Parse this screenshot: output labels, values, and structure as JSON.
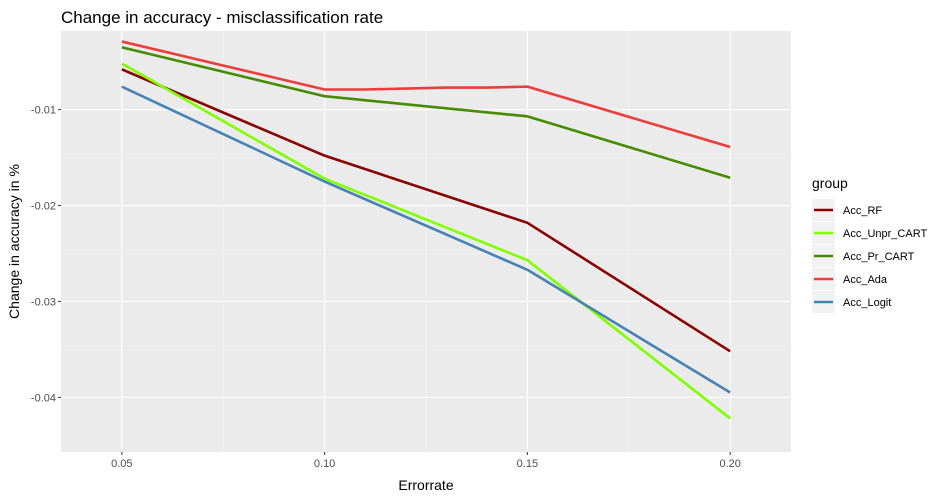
{
  "chart_data": {
    "type": "line",
    "title": "Change in accuracy - misclassification rate",
    "xlabel": "Errorrate",
    "ylabel": "Change in accuracy in %",
    "x": [
      0.05,
      0.1,
      0.15,
      0.2
    ],
    "x_tick_labels": [
      "0.05",
      "0.10",
      "0.15",
      "0.20"
    ],
    "y_ticks": [
      -0.01,
      -0.02,
      -0.03,
      -0.04
    ],
    "y_tick_labels": [
      "-0.01",
      "-0.02",
      "-0.03",
      "-0.04"
    ],
    "xlim": [
      0.035,
      0.215
    ],
    "ylim": [
      -0.0457,
      -0.0018
    ],
    "grid": true,
    "legend": {
      "title": "group",
      "position": "right"
    },
    "series": [
      {
        "name": "Acc_RF",
        "color": "#8b0000",
        "x": [
          0.05,
          0.1,
          0.15,
          0.2
        ],
        "values": [
          -0.0058,
          -0.0148,
          -0.0218,
          -0.0352
        ]
      },
      {
        "name": "Acc_Unpr_CART",
        "color": "#7fff00",
        "x": [
          0.05,
          0.1,
          0.15,
          0.2
        ],
        "values": [
          -0.0052,
          -0.0172,
          -0.0257,
          -0.0422
        ]
      },
      {
        "name": "Acc_Pr_CART",
        "color": "#458b00",
        "x": [
          0.05,
          0.1,
          0.15,
          0.2
        ],
        "values": [
          -0.0035,
          -0.0086,
          -0.0107,
          -0.0171
        ]
      },
      {
        "name": "Acc_Ada",
        "color": "#ee3b3b",
        "x": [
          0.05,
          0.07,
          0.1,
          0.11,
          0.12,
          0.13,
          0.14,
          0.15,
          0.2
        ],
        "values": [
          -0.0029,
          -0.0049,
          -0.0079,
          -0.0079,
          -0.0078,
          -0.0077,
          -0.0077,
          -0.0076,
          -0.0139
        ]
      },
      {
        "name": "Acc_Logit",
        "color": "#4682b4",
        "x": [
          0.05,
          0.1,
          0.15,
          0.2
        ],
        "values": [
          -0.0076,
          -0.0175,
          -0.0267,
          -0.0395
        ]
      }
    ]
  }
}
